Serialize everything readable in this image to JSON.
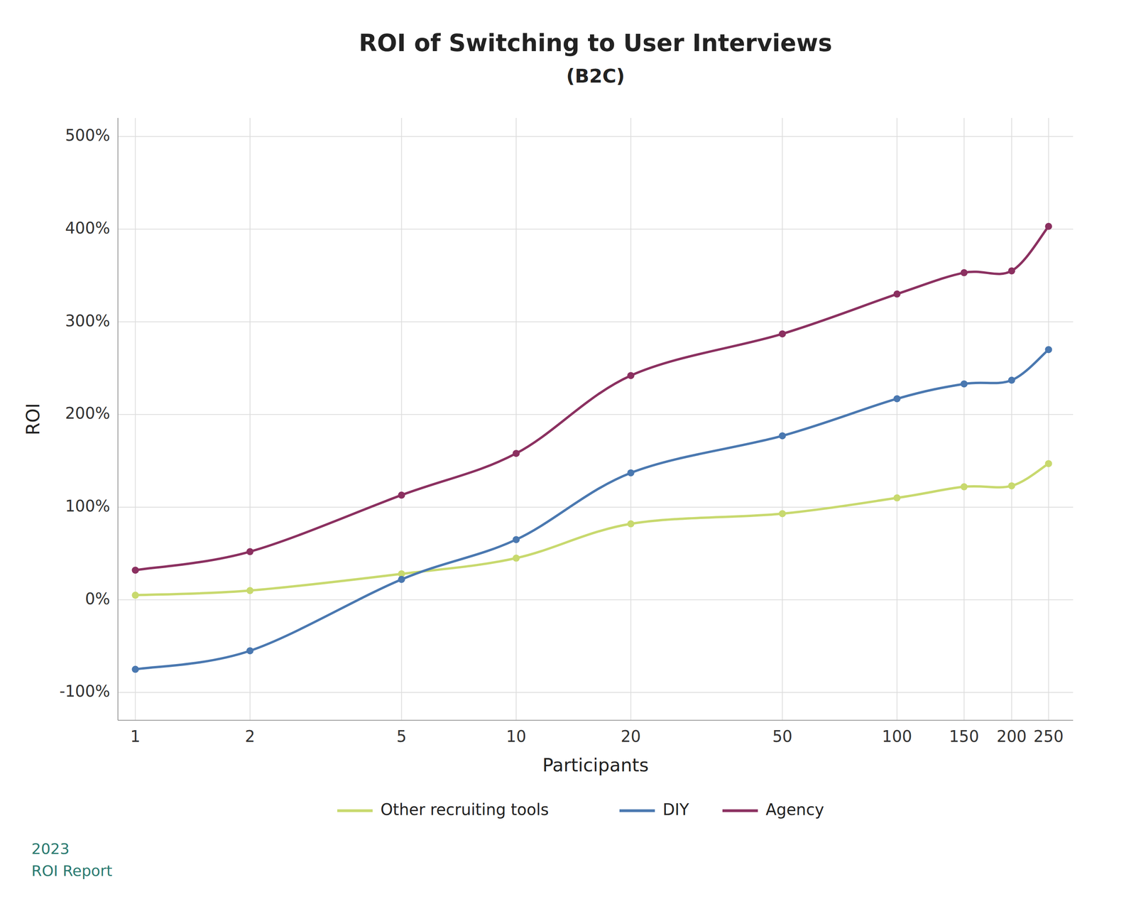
{
  "chart_data": {
    "type": "line",
    "title": "ROI of Switching to User Interviews",
    "subtitle": "(B2C)",
    "x_label": "Participants",
    "y_label": "ROI",
    "x": [
      1,
      2,
      5,
      10,
      20,
      50,
      100,
      150,
      200,
      250
    ],
    "series": [
      {
        "name": "Other recruiting tools",
        "color": "#c8d96e",
        "marker": "circle",
        "values": [
          5,
          10,
          28,
          45,
          82,
          93,
          110,
          122,
          123,
          147
        ]
      },
      {
        "name": "DIY",
        "color": "#4a78b0",
        "marker": "circle",
        "values": [
          -75,
          -55,
          22,
          65,
          137,
          177,
          217,
          233,
          237,
          270
        ]
      },
      {
        "name": "Agency",
        "color": "#8b3060",
        "marker": "circle",
        "values": [
          32,
          52,
          113,
          158,
          242,
          287,
          330,
          353,
          355,
          403
        ]
      }
    ],
    "log": "x",
    "xlim": [
      0.9,
      290
    ],
    "xticks": [
      1,
      2,
      5,
      10,
      20,
      50,
      100,
      150,
      200,
      250
    ],
    "ylim": [
      -130,
      520
    ],
    "yticks": [
      {
        "value": -100,
        "label": "-100%"
      },
      {
        "value": 0,
        "label": "0%"
      },
      {
        "value": 100,
        "label": "100%"
      },
      {
        "value": 200,
        "label": "200%"
      },
      {
        "value": 300,
        "label": "300%"
      },
      {
        "value": 400,
        "label": "400%"
      },
      {
        "value": 500,
        "label": "500%"
      }
    ],
    "grid": true,
    "legend": "bottom",
    "annotations": [
      "2023",
      "ROI Report"
    ]
  }
}
